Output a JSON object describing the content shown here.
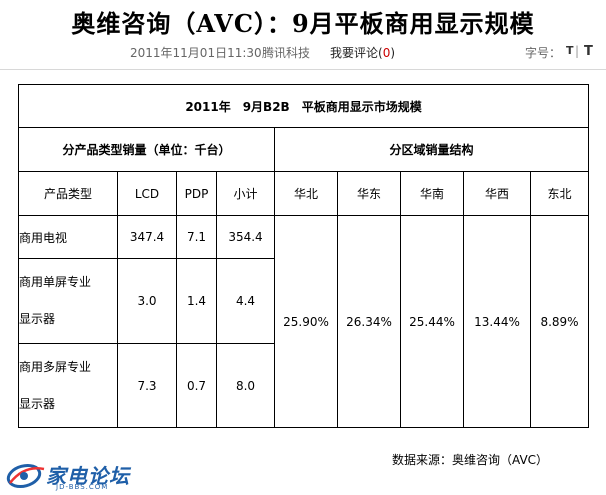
{
  "article": {
    "title": "奥维咨询（AVC）：9月平板商用显示规模",
    "time": "2011年11月01日11:30",
    "source": "腾讯科技",
    "comment_label": "我要评论",
    "comment_open": "(",
    "comment_count": "0",
    "comment_close": ")",
    "font_size_label": "字号：",
    "font_small": "T",
    "font_sep": "|",
    "font_large": "T"
  },
  "table": {
    "title": "2011年　9月B2B　平板商用显示市场规模",
    "left_section": "分产品类型销量（单位：千台）",
    "right_section": "分区域销量结构",
    "columns": [
      "产品类型",
      "LCD",
      "PDP",
      "小计"
    ],
    "regions": [
      "华北",
      "华东",
      "华南",
      "华西",
      "东北"
    ],
    "rows": [
      {
        "type_l1": "商用电视",
        "type_l2": "",
        "lcd": "347.4",
        "pdp": "7.1",
        "subtotal": "354.4"
      },
      {
        "type_l1": "商用单屏专业",
        "type_l2": "显示器",
        "lcd": "3.0",
        "pdp": "1.4",
        "subtotal": "4.4"
      },
      {
        "type_l1": "商用多屏专业",
        "type_l2": "显示器",
        "lcd": "7.3",
        "pdp": "0.7",
        "subtotal": "8.0"
      }
    ],
    "region_shares": [
      "25.90%",
      "26.34%",
      "25.44%",
      "13.44%",
      "8.89%"
    ]
  },
  "data_source": "数据来源：奥维咨询（AVC）",
  "watermark": {
    "name": "家电论坛",
    "url": "JD-BBS.COM"
  },
  "colors": {
    "comment_count": "#cc0000",
    "watermark": "#1f5fa8",
    "meta_text": "#666666"
  }
}
